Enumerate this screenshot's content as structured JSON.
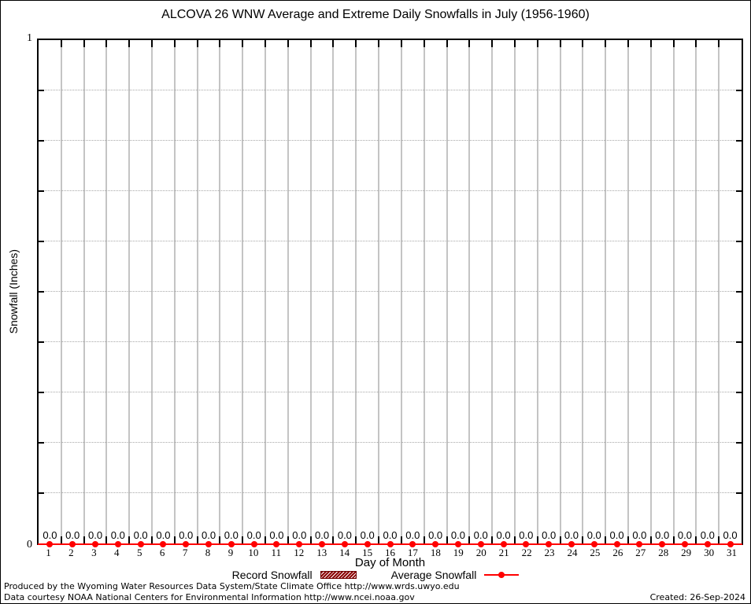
{
  "title": "ALCOVA 26 WNW Average and Extreme Daily Snowfalls in July (1956-1960)",
  "chart_data": {
    "type": "line",
    "x": [
      1,
      2,
      3,
      4,
      5,
      6,
      7,
      8,
      9,
      10,
      11,
      12,
      13,
      14,
      15,
      16,
      17,
      18,
      19,
      20,
      21,
      22,
      23,
      24,
      25,
      26,
      27,
      28,
      29,
      30,
      31
    ],
    "series": [
      {
        "name": "Record Snowfall",
        "style": "hatched-box",
        "color": "#8b0000",
        "values": [
          0,
          0,
          0,
          0,
          0,
          0,
          0,
          0,
          0,
          0,
          0,
          0,
          0,
          0,
          0,
          0,
          0,
          0,
          0,
          0,
          0,
          0,
          0,
          0,
          0,
          0,
          0,
          0,
          0,
          0,
          0
        ]
      },
      {
        "name": "Average Snowfall",
        "style": "line-with-points",
        "color": "#ff0000",
        "values": [
          0,
          0,
          0,
          0,
          0,
          0,
          0,
          0,
          0,
          0,
          0,
          0,
          0,
          0,
          0,
          0,
          0,
          0,
          0,
          0,
          0,
          0,
          0,
          0,
          0,
          0,
          0,
          0,
          0,
          0,
          0
        ]
      }
    ],
    "value_labels": [
      "0.0",
      "0.0",
      "0.0",
      "0.0",
      "0.0",
      "0.0",
      "0.0",
      "0.0",
      "0.0",
      "0.0",
      "0.0",
      "0.0",
      "0.0",
      "0.0",
      "0.0",
      "0.0",
      "0.0",
      "0.0",
      "0.0",
      "0.0",
      "0.0",
      "0.0",
      "0.0",
      "0.0",
      "0.0",
      "0.0",
      "0.0",
      "0.0",
      "0.0",
      "0.0",
      "0.0"
    ],
    "xlabel": "Day of Month",
    "ylabel": "Snowfall (Inches)",
    "ylim": [
      0,
      1
    ],
    "ytick_interval": 0.1,
    "ytick_labels": {
      "top": "1",
      "bottom": "0"
    },
    "grid": {
      "vertical": "solid gray at day boundaries",
      "horizontal": "dotted gray every 0.1"
    },
    "legend_position": "bottom-center"
  },
  "legend": {
    "record_label": "Record Snowfall",
    "average_label": "Average Snowfall"
  },
  "colors": {
    "average_series": "#ff0000",
    "record_series": "#8b0000",
    "vertical_grid": "#c4c4c4",
    "horizontal_grid": "#a8a8a8",
    "border": "#000000"
  },
  "footer": {
    "line1": "Produced by the Wyoming Water Resources Data System/State Climate Office http://www.wrds.uwyo.edu",
    "line2": "Data courtesy NOAA National Centers for Environmental Information http://www.ncei.noaa.gov",
    "created": "Created: 26-Sep-2024"
  }
}
